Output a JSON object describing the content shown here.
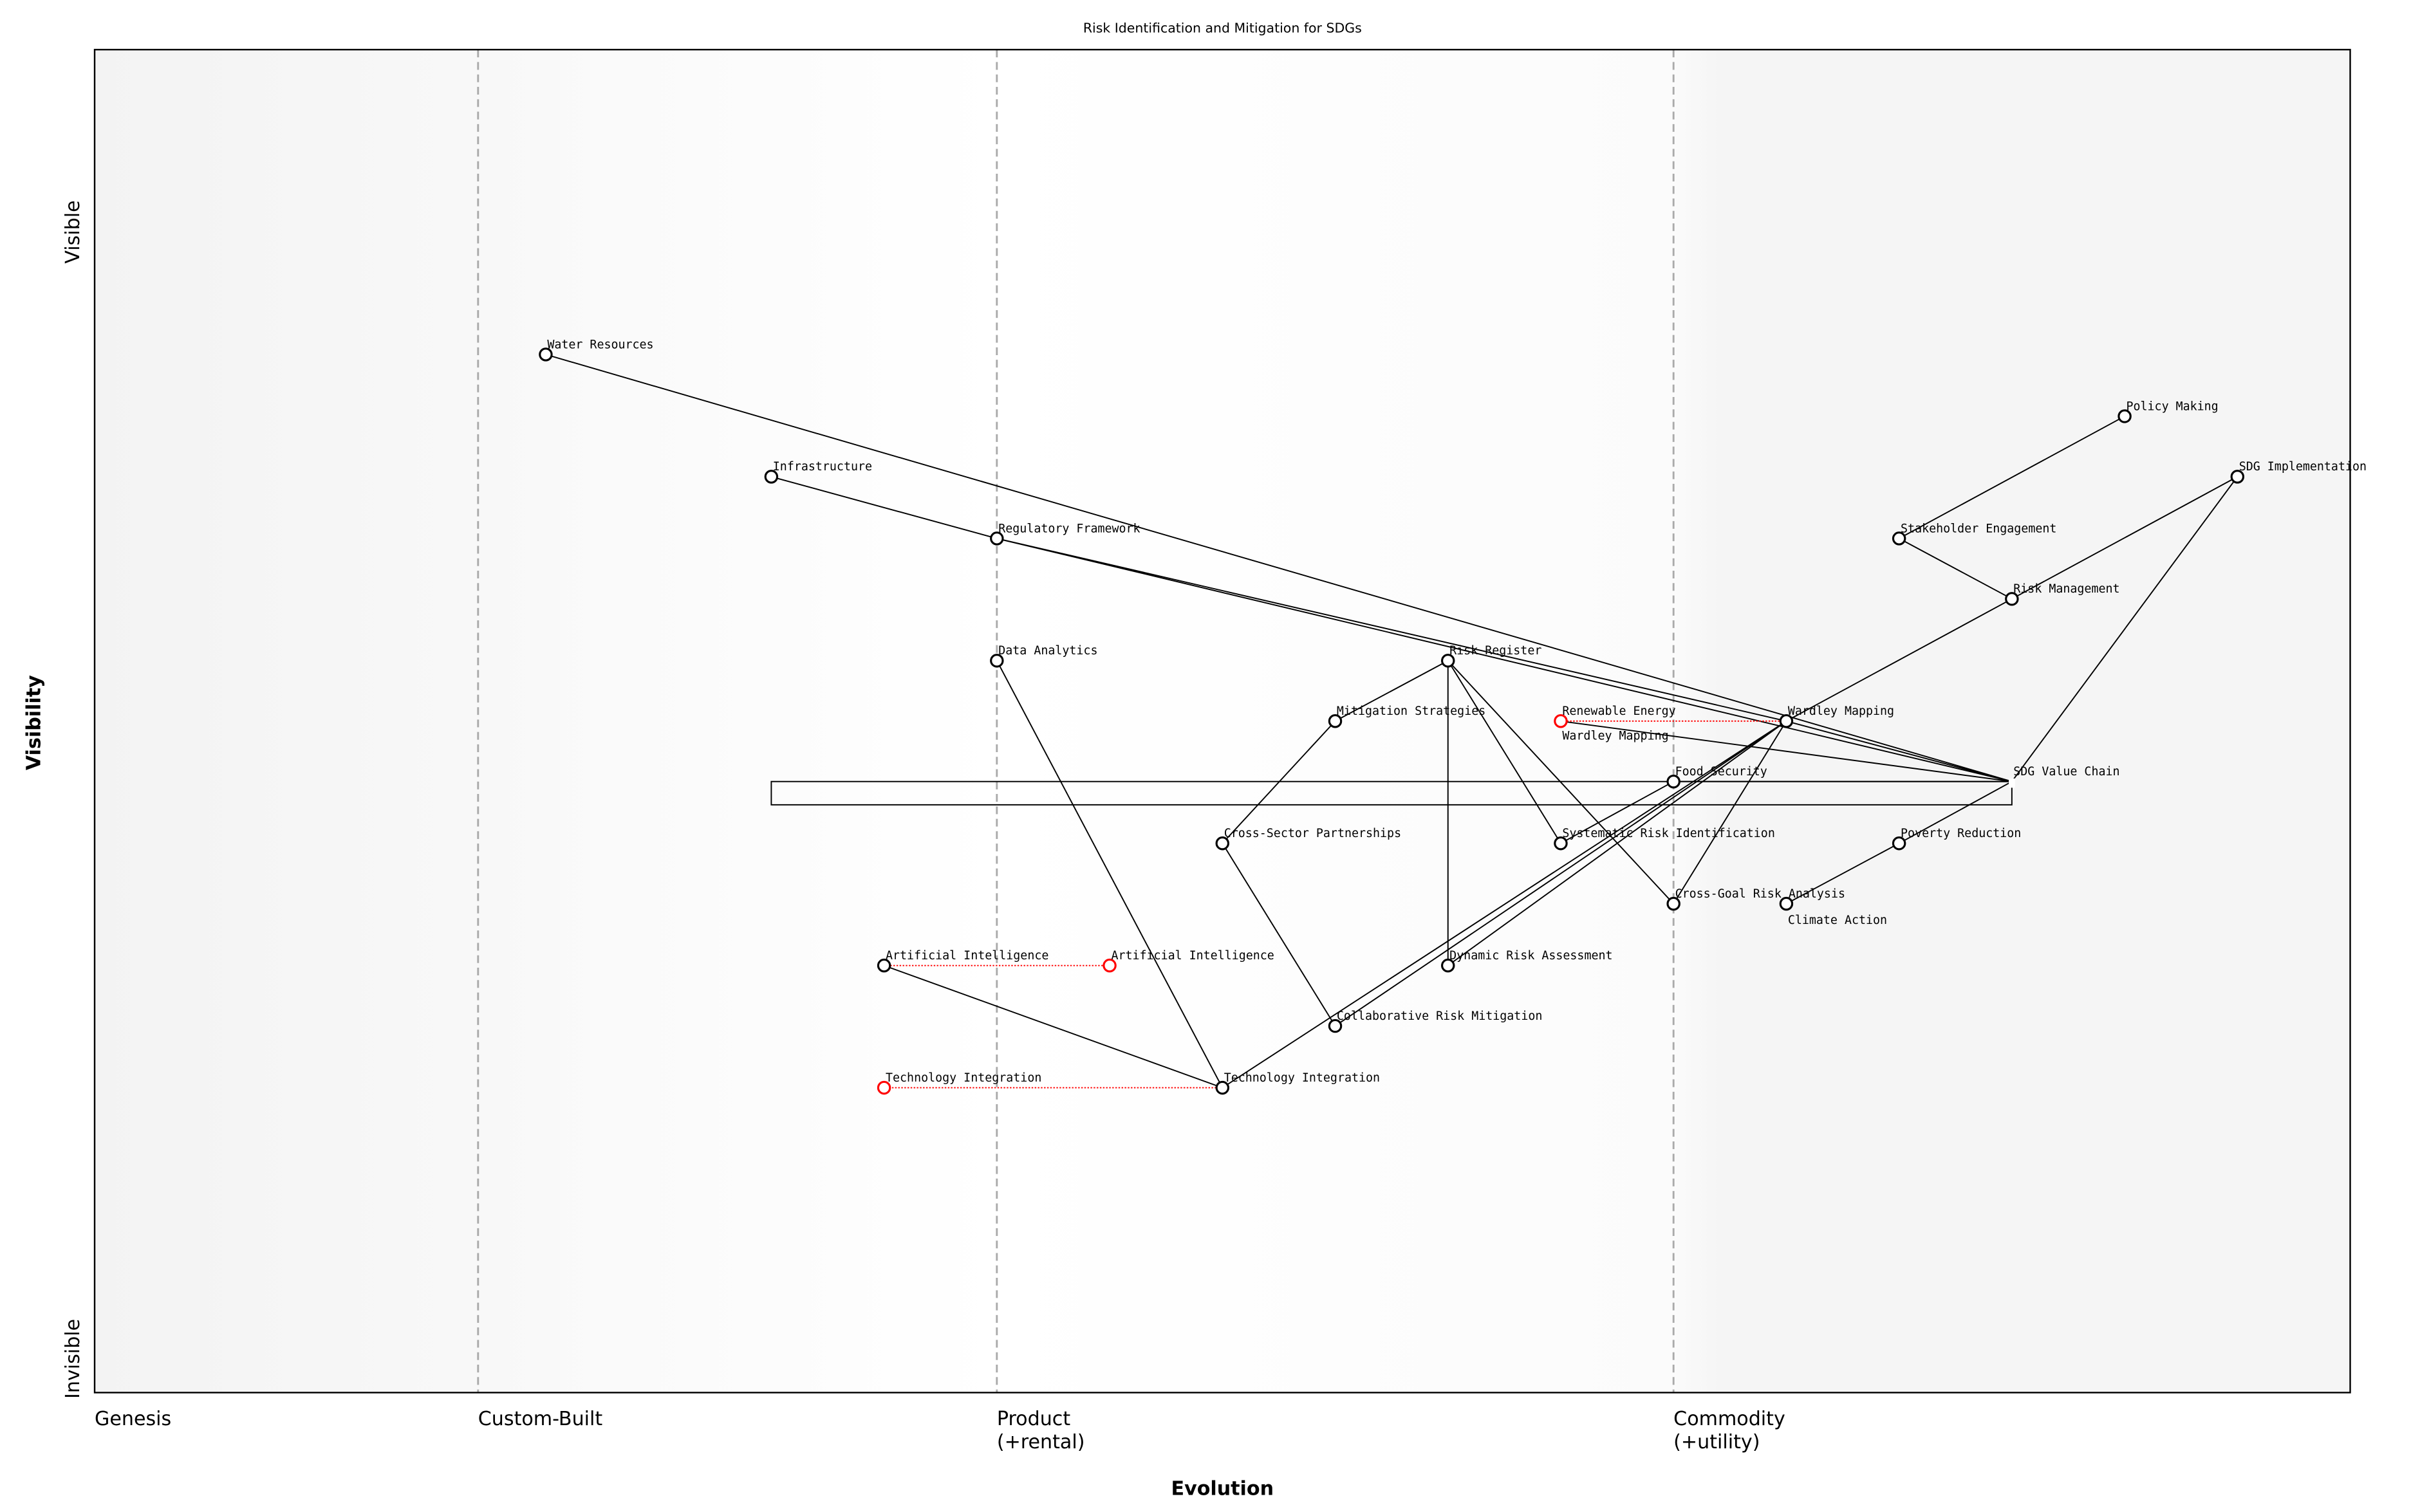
{
  "title": "Risk Identification and Mitigation for SDGs",
  "x_axis": {
    "label": "Evolution",
    "stages": [
      {
        "name": "Genesis",
        "at": 0.0
      },
      {
        "name": "Custom-Built",
        "at": 0.17
      },
      {
        "name": "Product\n(+rental)",
        "at": 0.4
      },
      {
        "name": "Commodity\n(+utility)",
        "at": 0.7
      }
    ]
  },
  "y_axis": {
    "label": "Visibility",
    "top": "Visible",
    "bottom": "Invisible"
  },
  "colors": {
    "node": "#000000",
    "evolve": "#ff0000",
    "stage_line": "#aaaaaa"
  },
  "components": [
    {
      "id": "water",
      "name": "Water Resources",
      "visibility": 0.773,
      "maturity": 0.2
    },
    {
      "id": "infra",
      "name": "Infrastructure",
      "visibility": 0.682,
      "maturity": 0.3
    },
    {
      "id": "reg",
      "name": "Regulatory Framework",
      "visibility": 0.636,
      "maturity": 0.4
    },
    {
      "id": "data",
      "name": "Data Analytics",
      "visibility": 0.545,
      "maturity": 0.4
    },
    {
      "id": "risk",
      "name": "Risk Register",
      "visibility": 0.545,
      "maturity": 0.6
    },
    {
      "id": "mitig",
      "name": "Mitigation Strategies",
      "visibility": 0.5,
      "maturity": 0.55
    },
    {
      "id": "ward",
      "name": "Wardley Mapping",
      "visibility": 0.5,
      "maturity": 0.75
    },
    {
      "id": "food",
      "name": "Food Security",
      "visibility": 0.455,
      "maturity": 0.7
    },
    {
      "id": "chain",
      "name": "SDG Value Chain",
      "visibility": 0.455,
      "maturity": 0.85,
      "anchor": true
    },
    {
      "id": "cross",
      "name": "Cross-Sector Partnerships",
      "visibility": 0.409,
      "maturity": 0.5
    },
    {
      "id": "sysrisk",
      "name": "Systematic Risk Identification",
      "visibility": 0.409,
      "maturity": 0.65
    },
    {
      "id": "pov",
      "name": "Poverty Reduction",
      "visibility": 0.409,
      "maturity": 0.8
    },
    {
      "id": "crossgoal",
      "name": "Cross-Goal Risk Analysis",
      "visibility": 0.364,
      "maturity": 0.7
    },
    {
      "id": "climate",
      "name": "Climate Action",
      "visibility": 0.364,
      "maturity": 0.75
    },
    {
      "id": "ai",
      "name": "Artificial Intelligence",
      "visibility": 0.318,
      "maturity": 0.35
    },
    {
      "id": "dyn",
      "name": "Dynamic Risk Assessment",
      "visibility": 0.318,
      "maturity": 0.6
    },
    {
      "id": "collab",
      "name": "Collaborative Risk Mitigation",
      "visibility": 0.273,
      "maturity": 0.55
    },
    {
      "id": "tech",
      "name": "Technology Integration",
      "visibility": 0.227,
      "maturity": 0.5
    },
    {
      "id": "policy",
      "name": "Policy Making",
      "visibility": 0.727,
      "maturity": 0.9
    },
    {
      "id": "sdgimpl",
      "name": "SDG Implementation",
      "visibility": 0.682,
      "maturity": 0.95
    },
    {
      "id": "stake",
      "name": "Stakeholder Engagement",
      "visibility": 0.636,
      "maturity": 0.8
    },
    {
      "id": "riskmgmt",
      "name": "Risk Management",
      "visibility": 0.591,
      "maturity": 0.85
    },
    {
      "id": "renew",
      "name": "Renewable Energy",
      "visibility": 0.5,
      "maturity": 0.65,
      "evolving": true
    }
  ],
  "evolutions": [
    {
      "name": "Artificial Intelligence",
      "from": "ai",
      "to_maturity": 0.45
    },
    {
      "name": "Technology Integration",
      "from": "tech",
      "to_maturity": 0.35
    },
    {
      "name": "Wardley Mapping",
      "from": "renew",
      "to": "ward"
    }
  ],
  "links": [
    [
      "water",
      "chain"
    ],
    [
      "infra",
      "reg"
    ],
    [
      "reg",
      "ward"
    ],
    [
      "reg",
      "chain"
    ],
    [
      "risk",
      "mitig"
    ],
    [
      "risk",
      "dyn"
    ],
    [
      "risk",
      "sysrisk"
    ],
    [
      "risk",
      "crossgoal"
    ],
    [
      "mitig",
      "cross"
    ],
    [
      "cross",
      "collab"
    ],
    [
      "data",
      "tech"
    ],
    [
      "ai",
      "tech"
    ],
    [
      "tech",
      "ward"
    ],
    [
      "collab",
      "ward"
    ],
    [
      "dyn",
      "ward"
    ],
    [
      "ward",
      "crossgoal"
    ],
    [
      "sysrisk",
      "food"
    ],
    [
      "ward",
      "chain"
    ],
    [
      "ward",
      "riskmgmt"
    ],
    [
      "riskmgmt",
      "sdgimpl"
    ],
    [
      "riskmgmt",
      "stake"
    ],
    [
      "stake",
      "policy"
    ],
    [
      "sdgimpl",
      "chain"
    ],
    [
      "renew",
      "chain"
    ],
    [
      "food",
      "chain"
    ],
    [
      "pov",
      "chain"
    ],
    [
      "climate",
      "pov"
    ]
  ],
  "pipeline": {
    "component": "chain",
    "from_maturity": 0.3,
    "to_maturity": 0.85
  }
}
